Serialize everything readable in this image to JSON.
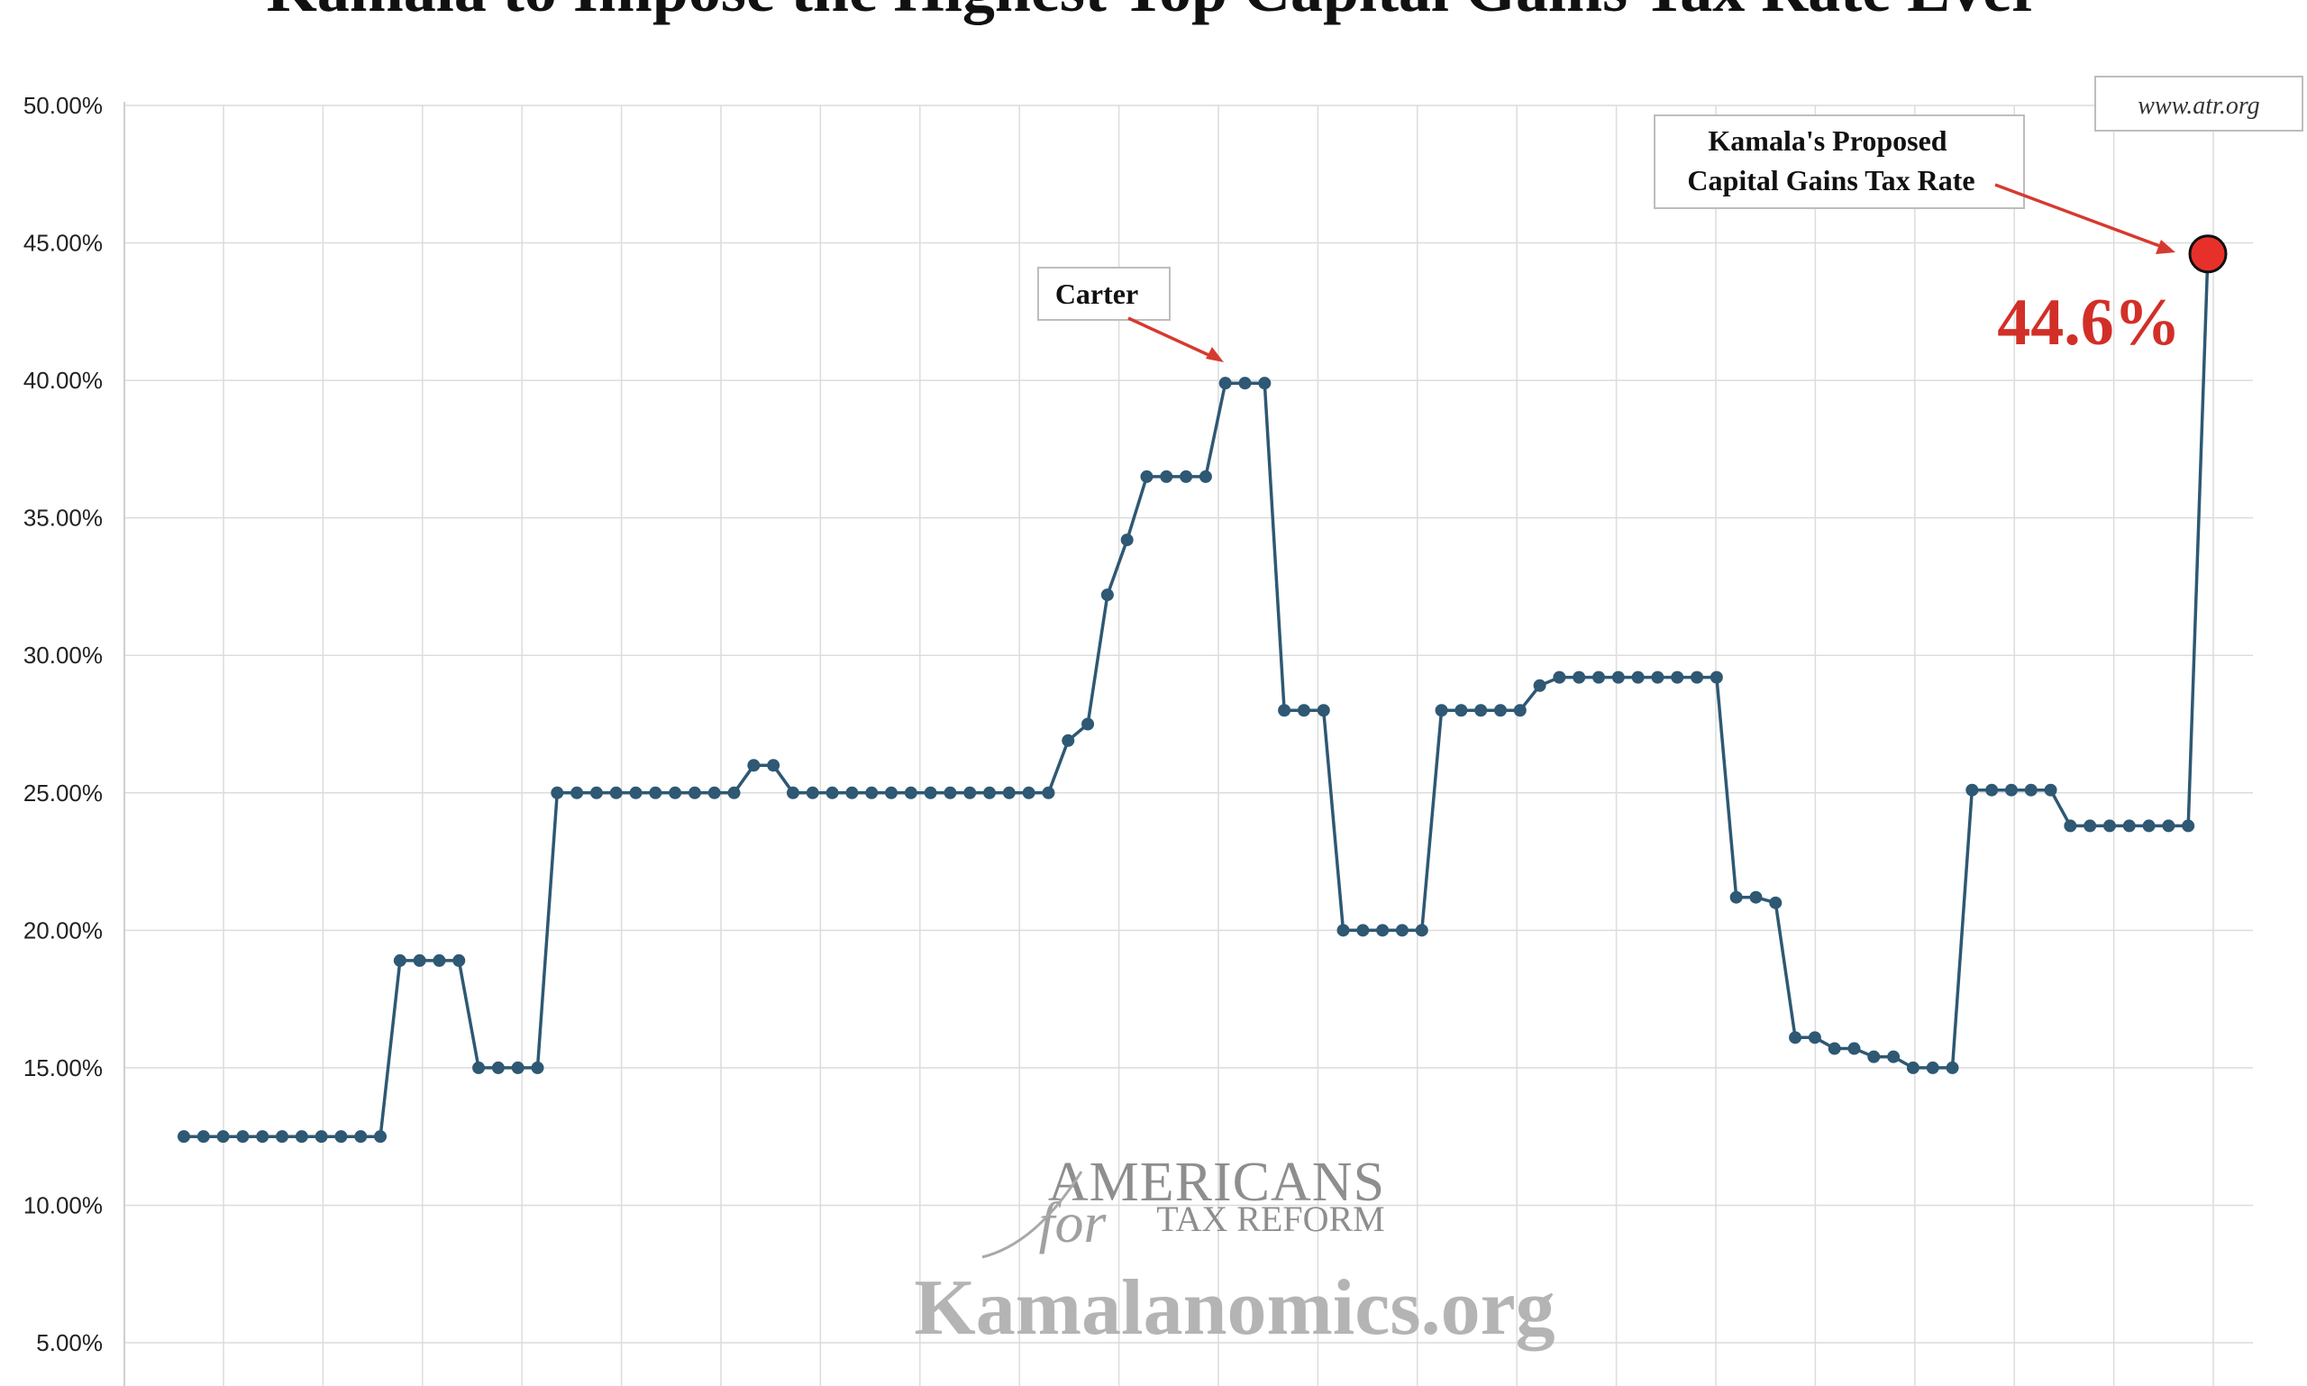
{
  "title": "Kamala to Impose the Highest Top Capital Gains Tax Rate Ever",
  "source_box": "www.atr.org",
  "annotations": {
    "carter": "Carter",
    "proposed_line1": "Kamala's Proposed",
    "proposed_line2": "Capital Gains Tax Rate",
    "proposed_value": "44.6%"
  },
  "watermark": {
    "org_line1": "AMERICANS",
    "org_for": "for",
    "org_line2": "TAX REFORM",
    "site": "Kamalanomics.org"
  },
  "colors": {
    "series_line": "#2e5873",
    "marker": "#2e5873",
    "highlight_marker": "#e8302a",
    "highlight_text": "#d22f28",
    "arrow": "#d63a2f",
    "grid": "#dcdcdc"
  },
  "chart_data": {
    "type": "line",
    "title": "Kamala to Impose the Highest Top Capital Gains Tax Rate Ever",
    "xlabel": "",
    "ylabel": "",
    "ylim": [
      0.05,
      0.5
    ],
    "yticks": [
      "5.00%",
      "10.00%",
      "15.00%",
      "20.00%",
      "25.00%",
      "30.00%",
      "35.00%",
      "40.00%",
      "45.00%",
      "50.00%"
    ],
    "ytick_values": [
      0.05,
      0.1,
      0.15,
      0.2,
      0.25,
      0.3,
      0.35,
      0.4,
      0.45,
      0.5
    ],
    "grid": true,
    "legend": "none",
    "x_tick_labels_visible": false,
    "series": [
      {
        "values": [
          0.125,
          0.125,
          0.125,
          0.125,
          0.125,
          0.125,
          0.125,
          0.125,
          0.125,
          0.125,
          0.125,
          0.189,
          0.189,
          0.189,
          0.189,
          0.15,
          0.15,
          0.15,
          0.15,
          0.25,
          0.25,
          0.25,
          0.25,
          0.25,
          0.25,
          0.25,
          0.25,
          0.25,
          0.25,
          0.26,
          0.26,
          0.25,
          0.25,
          0.25,
          0.25,
          0.25,
          0.25,
          0.25,
          0.25,
          0.25,
          0.25,
          0.25,
          0.25,
          0.25,
          0.25,
          0.269,
          0.275,
          0.322,
          0.342,
          0.365,
          0.365,
          0.365,
          0.365,
          0.399,
          0.399,
          0.399,
          0.28,
          0.28,
          0.28,
          0.2,
          0.2,
          0.2,
          0.2,
          0.2,
          0.28,
          0.28,
          0.28,
          0.28,
          0.28,
          0.289,
          0.292,
          0.292,
          0.292,
          0.292,
          0.292,
          0.292,
          0.292,
          0.292,
          0.292,
          0.212,
          0.212,
          0.21,
          0.161,
          0.161,
          0.157,
          0.157,
          0.154,
          0.154,
          0.15,
          0.15,
          0.15,
          0.251,
          0.251,
          0.251,
          0.251,
          0.251,
          0.238,
          0.238,
          0.238,
          0.238,
          0.238,
          0.238,
          0.238,
          0.446
        ],
        "highlight_last": true
      }
    ]
  }
}
